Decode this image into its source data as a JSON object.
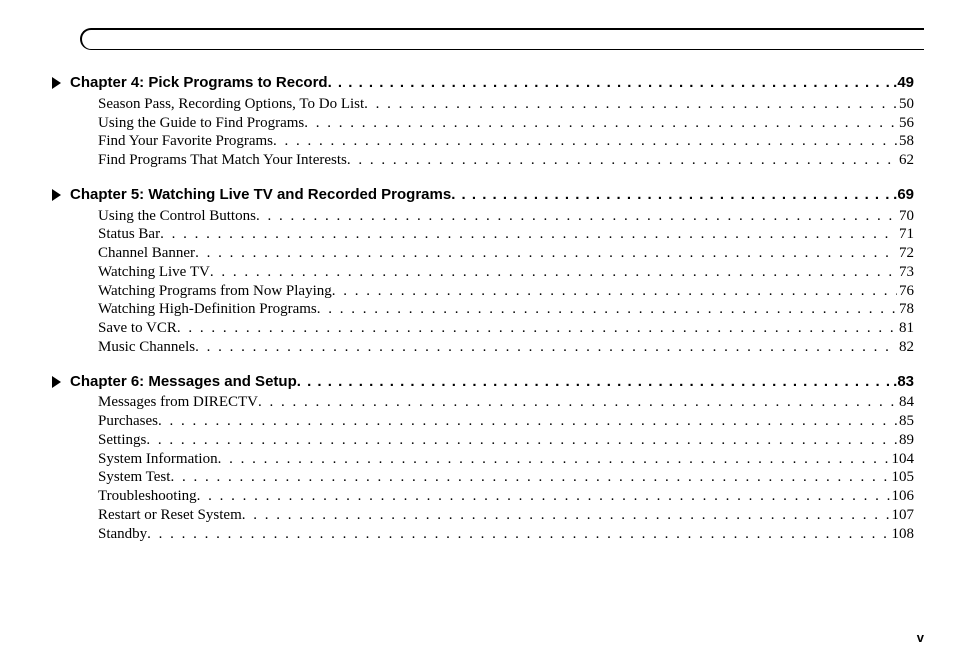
{
  "page_number_label": "v",
  "dot_leader": " . . . . . . . . . . . . . . . . . . . . . . . . . . . . . . . . . . . . . . . . . . . . . . . . . . . . . . . . . . . . . . . . . . . . . . . . . . . . . . . . . . . . . . . . . . . . . . . . . . . . . . . . . . . . . . . . . . . . . . . . . . . . . . . . . . . . . . . . . . . . . . . . . . . . . . . . . . . . . . . . . . . . . . . . . . . . . . . . . . . .",
  "chapters": [
    {
      "title": "Chapter 4: Pick Programs to Record",
      "page": "49",
      "items": [
        {
          "title": "Season Pass, Recording Options, To Do List",
          "page": "50"
        },
        {
          "title": "Using the Guide to Find Programs",
          "page": "56"
        },
        {
          "title": "Find Your Favorite Programs",
          "page": "58"
        },
        {
          "title": "Find Programs That Match Your Interests",
          "page": "62"
        }
      ]
    },
    {
      "title": "Chapter 5: Watching Live TV and Recorded Programs",
      "page": "69",
      "items": [
        {
          "title": "Using the Control Buttons",
          "page": "70"
        },
        {
          "title": "Status Bar",
          "page": "71"
        },
        {
          "title": "Channel Banner",
          "page": "72"
        },
        {
          "title": "Watching Live TV",
          "page": "73"
        },
        {
          "title": "Watching Programs from Now Playing",
          "page": "76"
        },
        {
          "title": "Watching High-Definition Programs",
          "page": "78"
        },
        {
          "title": "Save to VCR",
          "page": "81"
        },
        {
          "title": "Music Channels",
          "page": "82"
        }
      ]
    },
    {
      "title": "Chapter 6: Messages and Setup",
      "page": "83",
      "items": [
        {
          "title": "Messages from DIRECTV",
          "page": "84"
        },
        {
          "title": "Purchases",
          "page": "85"
        },
        {
          "title": "Settings",
          "page": "89"
        },
        {
          "title": "System Information",
          "page": "104"
        },
        {
          "title": "System Test",
          "page": "105"
        },
        {
          "title": "Troubleshooting",
          "page": "106"
        },
        {
          "title": "Restart or Reset System",
          "page": "107"
        },
        {
          "title": "Standby",
          "page": "108"
        }
      ]
    }
  ],
  "colors": {
    "text": "#000000",
    "background": "#ffffff"
  },
  "fonts": {
    "chapter": {
      "family": "Arial",
      "weight": 700,
      "size_pt": 11
    },
    "item": {
      "family": "Times New Roman",
      "weight": 400,
      "size_pt": 11
    }
  }
}
